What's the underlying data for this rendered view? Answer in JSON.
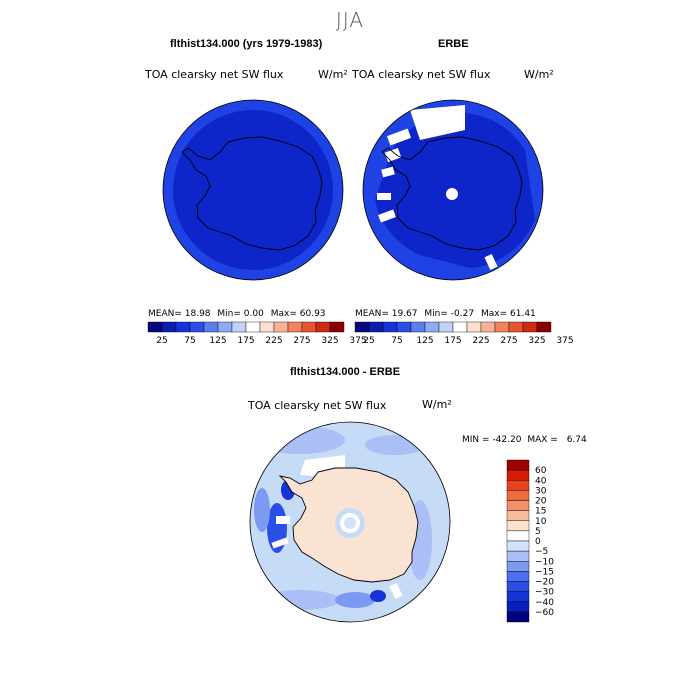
{
  "figure": {
    "title": "JJA"
  },
  "panels": [
    {
      "id": "model",
      "title": "flthist134.000 (yrs 1979-1983)",
      "subtitle": "TOA clearsky net SW flux",
      "units": "W/m²",
      "stats": {
        "mean_label": "MEAN=",
        "mean": "18.98",
        "min_label": "Min=",
        "min": "0.00",
        "max_label": "Max=",
        "max": "60.93"
      }
    },
    {
      "id": "obs",
      "title": "ERBE",
      "subtitle": "TOA clearsky net SW flux",
      "units": "W/m²",
      "stats": {
        "mean_label": "MEAN=",
        "mean": "19.67",
        "min_label": "Min=",
        "min": "-0.27",
        "max_label": "Max=",
        "max": "61.41"
      }
    },
    {
      "id": "diff",
      "title": "flthist134.000 - ERBE",
      "subtitle": "TOA clearsky net SW flux",
      "units": "W/m²",
      "stats": {
        "min_label": "MIN =",
        "min": "-42.20",
        "max_label": "MAX =",
        "max": "6.74"
      }
    }
  ],
  "colors": {
    "top_scale": [
      "#08087a",
      "#0a1fb0",
      "#1533d6",
      "#2a4fe6",
      "#5b80ee",
      "#8fa9f2",
      "#c2d2f7",
      "#ffffff",
      "#fde0cf",
      "#f9b394",
      "#f3825c",
      "#e85530",
      "#cc2a12",
      "#8c0000"
    ],
    "diff_scale": [
      "#000080",
      "#0b1fb8",
      "#1533d6",
      "#2a4fe6",
      "#4d6ff0",
      "#7d9af3",
      "#a9bff6",
      "#d4e1fa",
      "#ffffff",
      "#fde3cf",
      "#f9bb9a",
      "#f48f69",
      "#ef6a3e",
      "#e8431c",
      "#d41c06",
      "#9e0000"
    ],
    "map_base": "#0d25c9",
    "map_ring": "#1e42e3",
    "diff_base": "#c6dcf6",
    "diff_land": "#fbe3d3"
  },
  "chart_data": [
    {
      "type": "heatmap",
      "title": "flthist134.000 (yrs 1979-1983)",
      "subtitle": "TOA clearsky net SW flux",
      "colorbar_ticks": [
        "25",
        "75",
        "125",
        "175",
        "225",
        "275",
        "325",
        "375"
      ],
      "stats": {
        "mean": 18.98,
        "min": 0.0,
        "max": 60.93
      }
    },
    {
      "type": "heatmap",
      "title": "ERBE",
      "subtitle": "TOA clearsky net SW flux",
      "colorbar_ticks": [
        "25",
        "75",
        "125",
        "175",
        "225",
        "275",
        "325",
        "375"
      ],
      "stats": {
        "mean": 19.67,
        "min": -0.27,
        "max": 61.41
      }
    },
    {
      "type": "heatmap",
      "title": "flthist134.000 - ERBE",
      "subtitle": "TOA clearsky net SW flux",
      "colorbar_ticks": [
        "60",
        "40",
        "30",
        "20",
        "15",
        "10",
        "5",
        "0",
        "−5",
        "−10",
        "−15",
        "−20",
        "−30",
        "−40",
        "−60"
      ],
      "stats": {
        "min": -42.2,
        "max": 6.74
      }
    }
  ]
}
